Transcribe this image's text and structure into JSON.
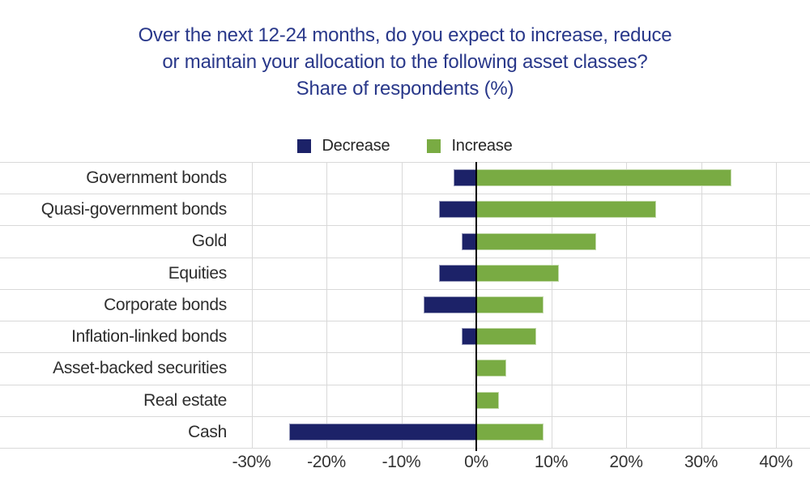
{
  "title": {
    "lines": [
      "Over the next 12-24 months, do you expect to increase, reduce",
      "or maintain your allocation to the following asset classes?",
      "Share of respondents (%)"
    ],
    "color": "#29388a"
  },
  "legend": {
    "items": [
      {
        "label": "Decrease",
        "color": "#1c2268"
      },
      {
        "label": "Increase",
        "color": "#79ab43"
      }
    ]
  },
  "chart_data": {
    "type": "bar",
    "orientation": "horizontal-diverging",
    "title": "Over the next 12-24 months, do you expect to increase, reduce or maintain your allocation to the following asset classes? Share of respondents (%)",
    "categories": [
      "Government bonds",
      "Quasi-government bonds",
      "Gold",
      "Equities",
      "Corporate bonds",
      "Inflation-linked bonds",
      "Asset-backed securities",
      "Real estate",
      "Cash"
    ],
    "series": [
      {
        "name": "Decrease",
        "color": "#1c2268",
        "values": [
          -3,
          -5,
          -2,
          -5,
          -7,
          -2,
          0,
          0,
          -25
        ]
      },
      {
        "name": "Increase",
        "color": "#79ab43",
        "values": [
          34,
          24,
          16,
          11,
          9,
          8,
          4,
          3,
          9
        ]
      }
    ],
    "xlabel": "",
    "ylabel": "",
    "xlim": [
      -30,
      40
    ],
    "x_ticks": [
      -30,
      -20,
      -10,
      0,
      10,
      20,
      30,
      40
    ],
    "x_tick_labels": [
      "-30%",
      "-20%",
      "-10%",
      "0%",
      "10%",
      "20%",
      "30%",
      "40%"
    ],
    "grid": true,
    "gridline_color": "#d9d9d9",
    "legend_position": "top-center"
  }
}
